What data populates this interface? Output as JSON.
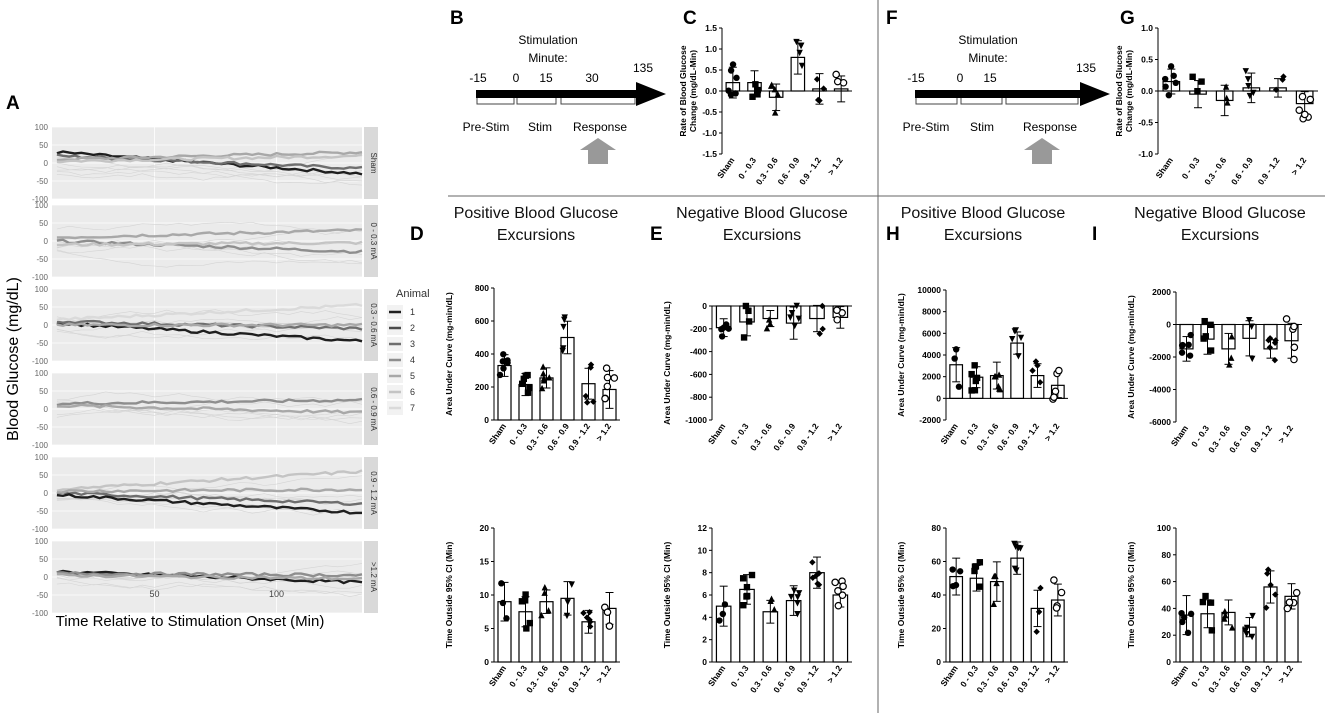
{
  "panel_letters": {
    "A": "A",
    "B": "B",
    "C": "C",
    "D": "D",
    "E": "E",
    "F": "F",
    "G": "G",
    "H": "H",
    "I": "I"
  },
  "panelA": {
    "ylabel": "Blood Glucose (mg/dL)",
    "xlabel": "Time Relative to Stimulation Onset (Min)",
    "y_ticks": [
      "100",
      "50",
      "0",
      "-50",
      "-100"
    ],
    "x_ticks": [
      "50",
      "100"
    ],
    "legend_title": "Animal",
    "legend_items": [
      "1",
      "2",
      "3",
      "4",
      "5",
      "6",
      "7"
    ],
    "legend_colors": [
      "#1e1e1e",
      "#4a4a4a",
      "#6e6e6e",
      "#8e8e8e",
      "#a8a8a8",
      "#c4c4c4",
      "#dadada"
    ],
    "strips": [
      "Sham",
      "0 - 0.3 mA",
      "0.3 - 0.6 mA",
      "0.6 - 0.9 mA",
      "0.9 - 1.2 mA",
      ">1.2 mA"
    ]
  },
  "timeline1": {
    "title": "Stimulation",
    "subtitle": "Minute:",
    "ticks": [
      "-15",
      "0",
      "15",
      "30",
      "135"
    ],
    "phases": [
      "Pre-Stim",
      "Stim",
      "Response"
    ]
  },
  "timeline2": {
    "title": "Stimulation",
    "subtitle": "Minute:",
    "ticks": [
      "-15",
      "0",
      "15",
      "135"
    ],
    "phases": [
      "Pre-Stim",
      "Stim",
      "Response"
    ]
  },
  "section_titles": {
    "D": [
      "Positive Blood Glucose",
      "Excursions"
    ],
    "E": [
      "Negative Blood Glucose",
      "Excursions"
    ],
    "H": [
      "Positive Blood Glucose",
      "Excursions"
    ],
    "I": [
      "Negative Blood Glucose",
      "Excursions"
    ]
  },
  "chart_data": [
    {
      "id": "C",
      "type": "bar",
      "ylabel": [
        "Rate of Blood Glucose",
        "Change (mg/dL-Min)"
      ],
      "categories": [
        "Sham",
        "0 - 0.3",
        "0.3 - 0.6",
        "0.6 - 0.9",
        "0.9 - 1.2",
        "> 1.2"
      ],
      "values": [
        0.2,
        0.2,
        -0.15,
        0.8,
        0.05,
        0.05
      ],
      "ylim": [
        -1.5,
        1.5
      ],
      "ticks": [
        "1.5",
        "1.0",
        "0.5",
        "0.0",
        "-0.5",
        "-1.0",
        "-1.5"
      ]
    },
    {
      "id": "G",
      "type": "bar",
      "ylabel": [
        "Rate of Blood Glucose",
        "Change (mg/dL-Min)"
      ],
      "categories": [
        "Sham",
        "0 - 0.3",
        "0.3 - 0.6",
        "0.6 - 0.9",
        "0.9 - 1.2",
        "> 1.2"
      ],
      "values": [
        0.15,
        -0.05,
        -0.15,
        0.05,
        0.05,
        -0.2
      ],
      "ylim": [
        -1.0,
        1.0
      ],
      "ticks": [
        "1.0",
        "0.5",
        "0.0",
        "-0.5",
        "-1.0"
      ]
    },
    {
      "id": "D1",
      "type": "bar",
      "ylabel": [
        "Area Under Curve (mg-min/dL)"
      ],
      "categories": [
        "Sham",
        "0 - 0.3",
        "0.3 - 0.6",
        "0.6 - 0.9",
        "0.9 - 1.2",
        "> 1.2"
      ],
      "values": [
        330,
        215,
        255,
        500,
        220,
        185
      ],
      "ylim": [
        0,
        800
      ],
      "ticks": [
        "800",
        "600",
        "400",
        "200",
        "0"
      ]
    },
    {
      "id": "E1",
      "type": "bar",
      "ylabel": [
        "Area Under Curve (mg-min/dL)"
      ],
      "categories": [
        "Sham",
        "0 - 0.3",
        "0.3 - 0.6",
        "0.6 - 0.9",
        "0.9 - 1.2",
        "> 1.2"
      ],
      "values": [
        -190,
        -140,
        -110,
        -150,
        -110,
        -100
      ],
      "ylim": [
        -1000,
        0
      ],
      "ticks": [
        "0",
        "-200",
        "-400",
        "-600",
        "-800",
        "-1000"
      ]
    },
    {
      "id": "H1",
      "type": "bar",
      "ylabel": [
        "Area Under Curve (mg-min/dL)"
      ],
      "categories": [
        "Sham",
        "0 - 0.3",
        "0.3 - 0.6",
        "0.6 - 0.9",
        "0.9 - 1.2",
        "> 1.2"
      ],
      "values": [
        3100,
        1950,
        2100,
        5100,
        2100,
        1200
      ],
      "ylim": [
        -2000,
        10000
      ],
      "ticks": [
        "10000",
        "8000",
        "6000",
        "4000",
        "2000",
        "0",
        "-2000"
      ]
    },
    {
      "id": "I1",
      "type": "bar",
      "ylabel": [
        "Area Under Curve (mg-min/dL)"
      ],
      "categories": [
        "Sham",
        "0 - 0.3",
        "0.3 - 0.6",
        "0.6 - 0.9",
        "0.9 - 1.2",
        "> 1.2"
      ],
      "values": [
        -1500,
        -900,
        -1500,
        -850,
        -1500,
        -1000
      ],
      "ylim": [
        -6000,
        2000
      ],
      "ticks": [
        "2000",
        "0",
        "-2000",
        "-4000",
        "-6000"
      ]
    },
    {
      "id": "D2",
      "type": "bar",
      "ylabel": [
        "Time Outside 95% CI (Min)"
      ],
      "categories": [
        "Sham",
        "0 - 0.3",
        "0.3 - 0.6",
        "0.6 - 0.9",
        "0.9 - 1.2",
        "> 1.2"
      ],
      "values": [
        9,
        7.5,
        9,
        9.5,
        6,
        8
      ],
      "ylim": [
        0,
        20
      ],
      "ticks": [
        "20",
        "15",
        "10",
        "5",
        "0"
      ]
    },
    {
      "id": "E2",
      "type": "bar",
      "ylabel": [
        "Time Outside 95% CI (Min)"
      ],
      "categories": [
        "Sham",
        "0 - 0.3",
        "0.3 - 0.6",
        "0.6 - 0.9",
        "0.9 - 1.2",
        "> 1.2"
      ],
      "values": [
        5,
        6.5,
        4.5,
        5.5,
        8,
        6
      ],
      "ylim": [
        0,
        12
      ],
      "ticks": [
        "12",
        "10",
        "8",
        "6",
        "4",
        "2",
        "0"
      ]
    },
    {
      "id": "H2",
      "type": "bar",
      "ylabel": [
        "Time Outside 95% CI (Min)"
      ],
      "categories": [
        "Sham",
        "0 - 0.3",
        "0.3 - 0.6",
        "0.6 - 0.9",
        "0.9 - 1.2",
        "> 1.2"
      ],
      "values": [
        51,
        50,
        48,
        62,
        32,
        37
      ],
      "ylim": [
        0,
        80
      ],
      "ticks": [
        "80",
        "60",
        "40",
        "20",
        "0"
      ]
    },
    {
      "id": "I2",
      "type": "bar",
      "ylabel": [
        "Time Outside 95% CI (Min)"
      ],
      "categories": [
        "Sham",
        "0 - 0.3",
        "0.3 - 0.6",
        "0.6 - 0.9",
        "0.9 - 1.2",
        "> 1.2"
      ],
      "values": [
        35,
        36,
        37,
        26,
        56,
        49
      ],
      "ylim": [
        0,
        100
      ],
      "ticks": [
        "100",
        "80",
        "60",
        "40",
        "20",
        "0"
      ]
    }
  ]
}
